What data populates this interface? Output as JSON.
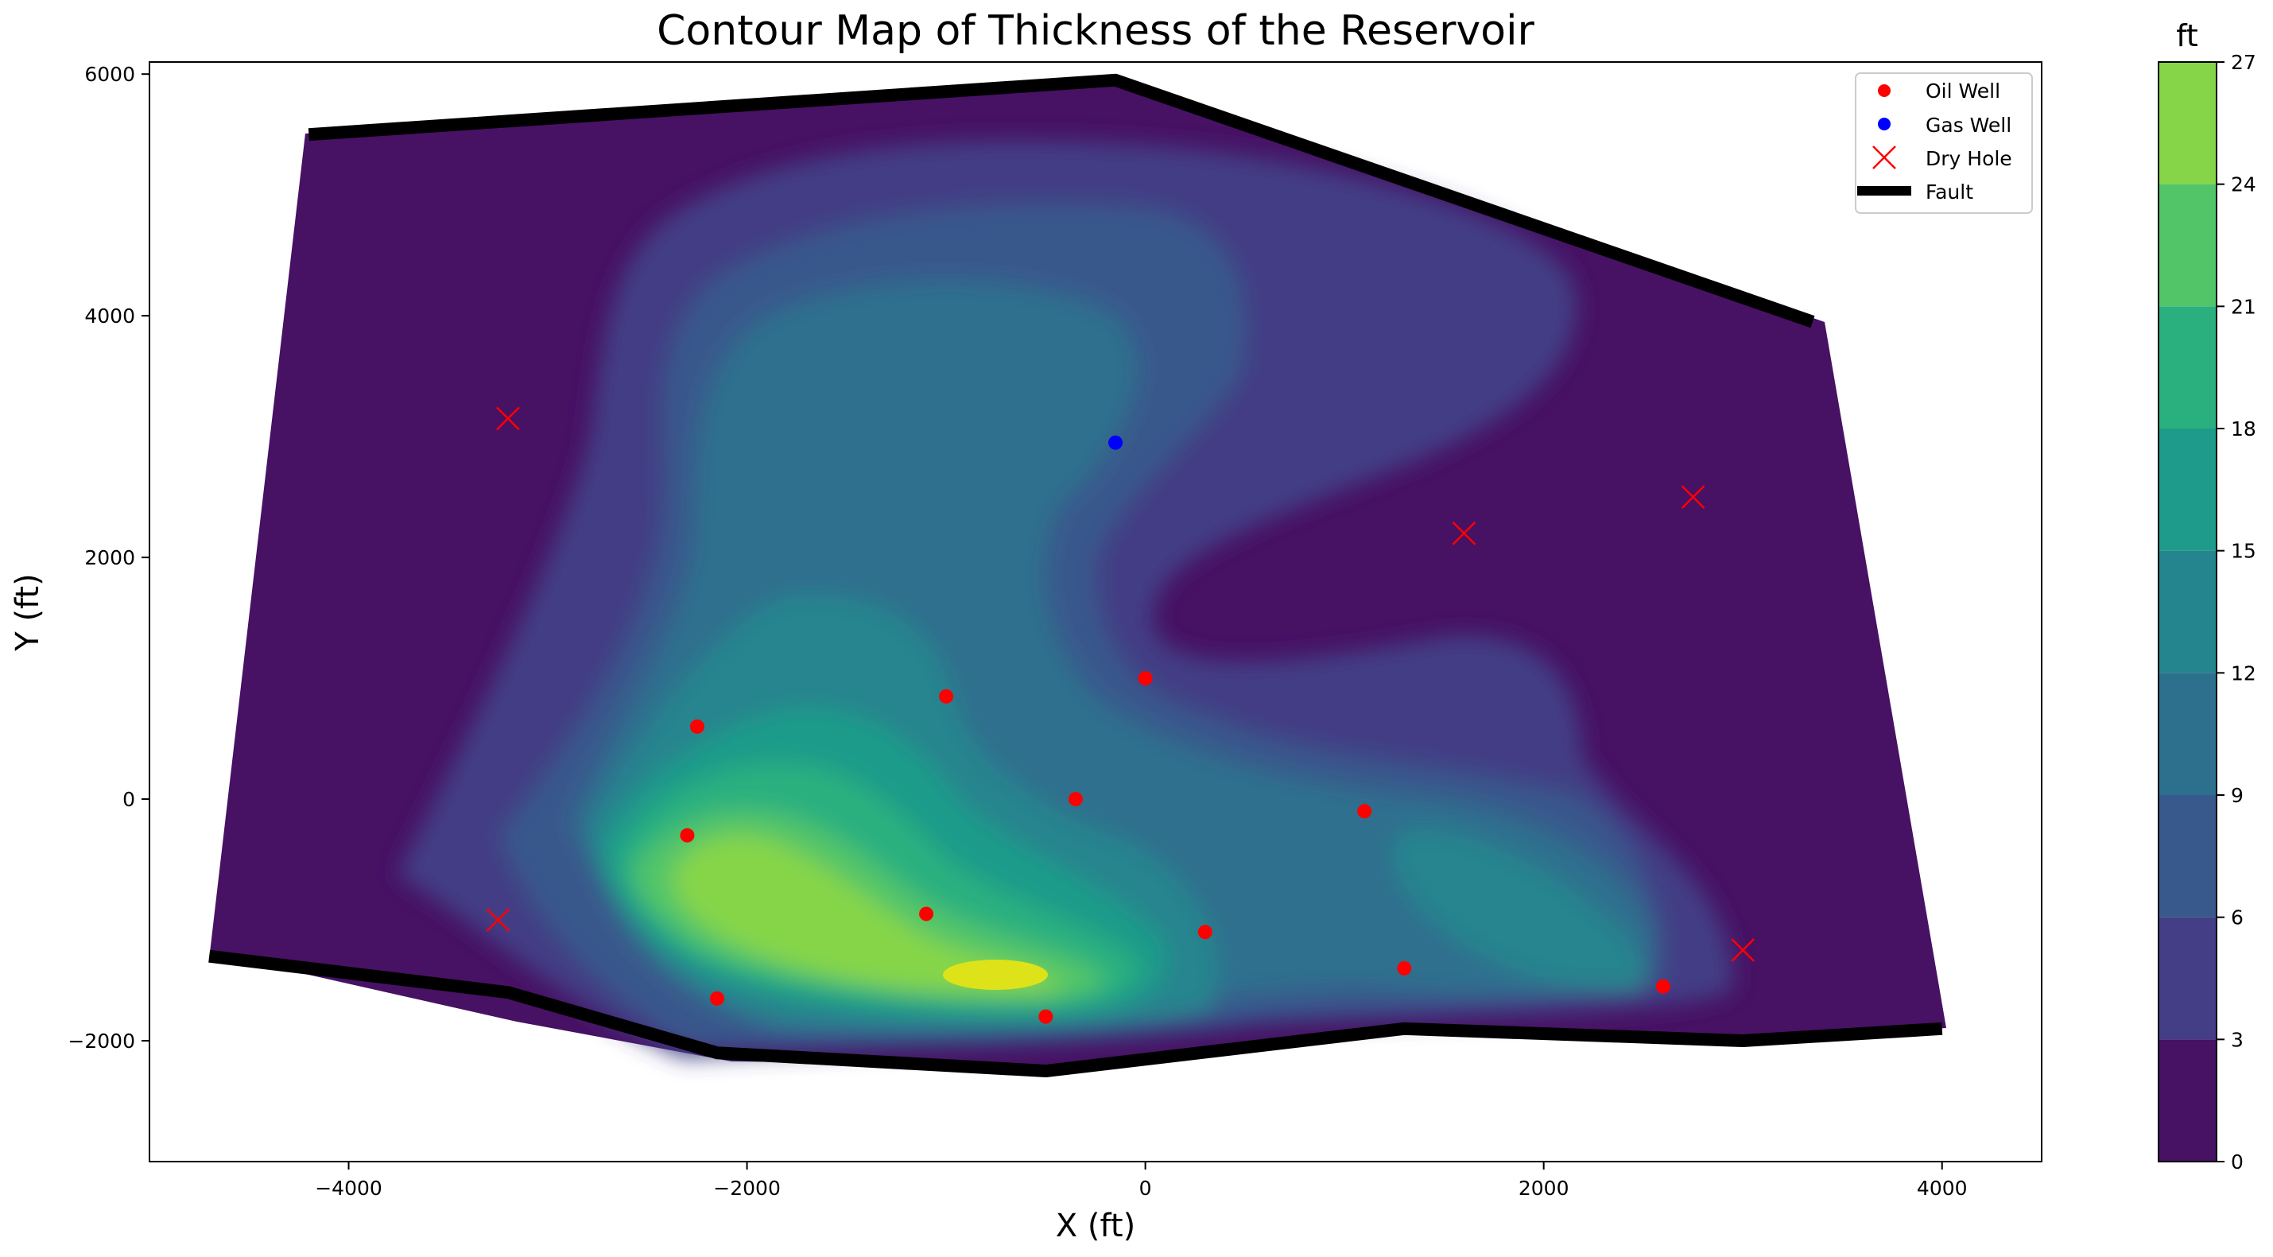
{
  "chart_data": {
    "type": "contour",
    "title": "Contour Map of Thickness of the Reservoir",
    "xlabel": "X (ft)",
    "ylabel": "Y (ft)",
    "xlim": [
      -5000,
      4500
    ],
    "ylim": [
      -3000,
      6100
    ],
    "xticks": [
      -4000,
      -2000,
      0,
      2000,
      4000
    ],
    "yticks": [
      -2000,
      0,
      2000,
      4000,
      6000
    ],
    "xtick_labels": [
      "−4000",
      "−2000",
      "0",
      "2000",
      "4000"
    ],
    "ytick_labels": [
      "−2000",
      "0",
      "2000",
      "4000",
      "6000"
    ],
    "colorbar": {
      "label": "ft",
      "levels": [
        0,
        3,
        6,
        9,
        12,
        15,
        18,
        21,
        24,
        27
      ],
      "tick_labels": [
        "0",
        "3",
        "6",
        "9",
        "12",
        "15",
        "18",
        "21",
        "24",
        "27"
      ],
      "colors": [
        "#471164",
        "#433e85",
        "#38598c",
        "#2d708e",
        "#25858e",
        "#1e9b8a",
        "#2ab07f",
        "#52c569",
        "#86d549",
        "#dde318"
      ]
    },
    "legend": {
      "placement": "top-right",
      "entries": [
        {
          "label": "Oil Well",
          "marker": "circle",
          "color": "#ff0000"
        },
        {
          "label": "Gas Well",
          "marker": "circle",
          "color": "#0000ff"
        },
        {
          "label": "Dry Hole",
          "marker": "x",
          "color": "#ff0000"
        },
        {
          "label": "Fault",
          "marker": "line",
          "color": "#000000"
        }
      ]
    },
    "oil_wells": [
      [
        -2250,
        600
      ],
      [
        -2300,
        -300
      ],
      [
        -2150,
        -1650
      ],
      [
        -1000,
        850
      ],
      [
        -1100,
        -950
      ],
      [
        -350,
        0
      ],
      [
        -500,
        -1800
      ],
      [
        0,
        1000
      ],
      [
        300,
        -1100
      ],
      [
        1100,
        -100
      ],
      [
        1300,
        -1400
      ],
      [
        2600,
        -1550
      ]
    ],
    "gas_wells": [
      [
        -150,
        2950
      ]
    ],
    "dry_holes": [
      [
        -3200,
        3150
      ],
      [
        -3250,
        -1000
      ],
      [
        1600,
        2200
      ],
      [
        2750,
        2500
      ],
      [
        3000,
        -1250
      ]
    ],
    "faults": [
      [
        [
          -4200,
          5500
        ],
        [
          -150,
          5950
        ],
        [
          3350,
          3950
        ]
      ],
      [
        [
          -4700,
          -1300
        ],
        [
          -3200,
          -1600
        ],
        [
          -2150,
          -2100
        ],
        [
          -500,
          -2250
        ],
        [
          1300,
          -1900
        ],
        [
          3000,
          -2000
        ],
        [
          4000,
          -1900
        ]
      ]
    ],
    "grid": false
  }
}
